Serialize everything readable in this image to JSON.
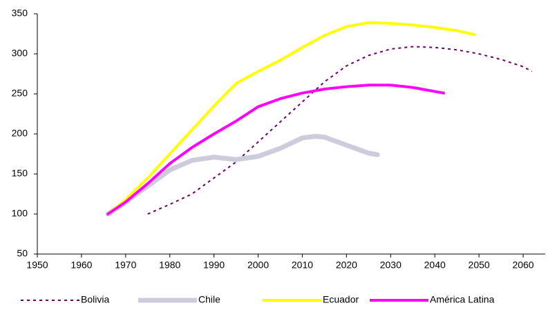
{
  "chart_data": {
    "type": "line",
    "xlim": [
      1950,
      2065
    ],
    "xticks": [
      1950,
      1960,
      1970,
      1980,
      1990,
      2000,
      2010,
      2020,
      2030,
      2040,
      2050,
      2060
    ],
    "ylim": [
      50,
      350
    ],
    "yticks": [
      50,
      100,
      150,
      200,
      250,
      300,
      350
    ],
    "grid": false,
    "legend": "bottom",
    "series": [
      {
        "name": "Bolivia",
        "color": "#660066",
        "width": 2,
        "dash": "dotted",
        "x": [
          1975,
          1980,
          1985,
          1990,
          1995,
          2000,
          2005,
          2010,
          2015,
          2020,
          2025,
          2030,
          2035,
          2040,
          2045,
          2050,
          2055,
          2060,
          2062
        ],
        "values": [
          100,
          112,
          125,
          145,
          165,
          190,
          215,
          240,
          265,
          285,
          298,
          306,
          309,
          308,
          305,
          300,
          293,
          284,
          278
        ]
      },
      {
        "name": "Chile",
        "color": "#ccccdd",
        "width": 7,
        "dash": "solid",
        "x": [
          1966,
          1970,
          1975,
          1980,
          1985,
          1990,
          1995,
          2000,
          2005,
          2010,
          2013,
          2015,
          2020,
          2025,
          2027
        ],
        "values": [
          100,
          115,
          135,
          155,
          167,
          171,
          168,
          172,
          182,
          195,
          197,
          196,
          186,
          176,
          174
        ]
      },
      {
        "name": "Ecuador",
        "color": "#ffff00",
        "width": 4,
        "dash": "solid",
        "x": [
          1966,
          1970,
          1975,
          1980,
          1985,
          1990,
          1995,
          2000,
          2005,
          2010,
          2015,
          2020,
          2025,
          2030,
          2035,
          2040,
          2045,
          2049
        ],
        "values": [
          100,
          118,
          145,
          175,
          205,
          235,
          263,
          278,
          292,
          308,
          323,
          334,
          339,
          338,
          336,
          333,
          329,
          324
        ]
      },
      {
        "name": "América Latina",
        "color": "#ff00ff",
        "width": 4,
        "dash": "solid",
        "x": [
          1966,
          1970,
          1975,
          1980,
          1985,
          1990,
          1995,
          2000,
          2005,
          2010,
          2015,
          2020,
          2025,
          2030,
          2035,
          2040,
          2042
        ],
        "values": [
          100,
          115,
          138,
          163,
          183,
          200,
          216,
          234,
          244,
          251,
          256,
          259,
          261,
          261,
          258,
          253,
          251
        ]
      }
    ]
  }
}
